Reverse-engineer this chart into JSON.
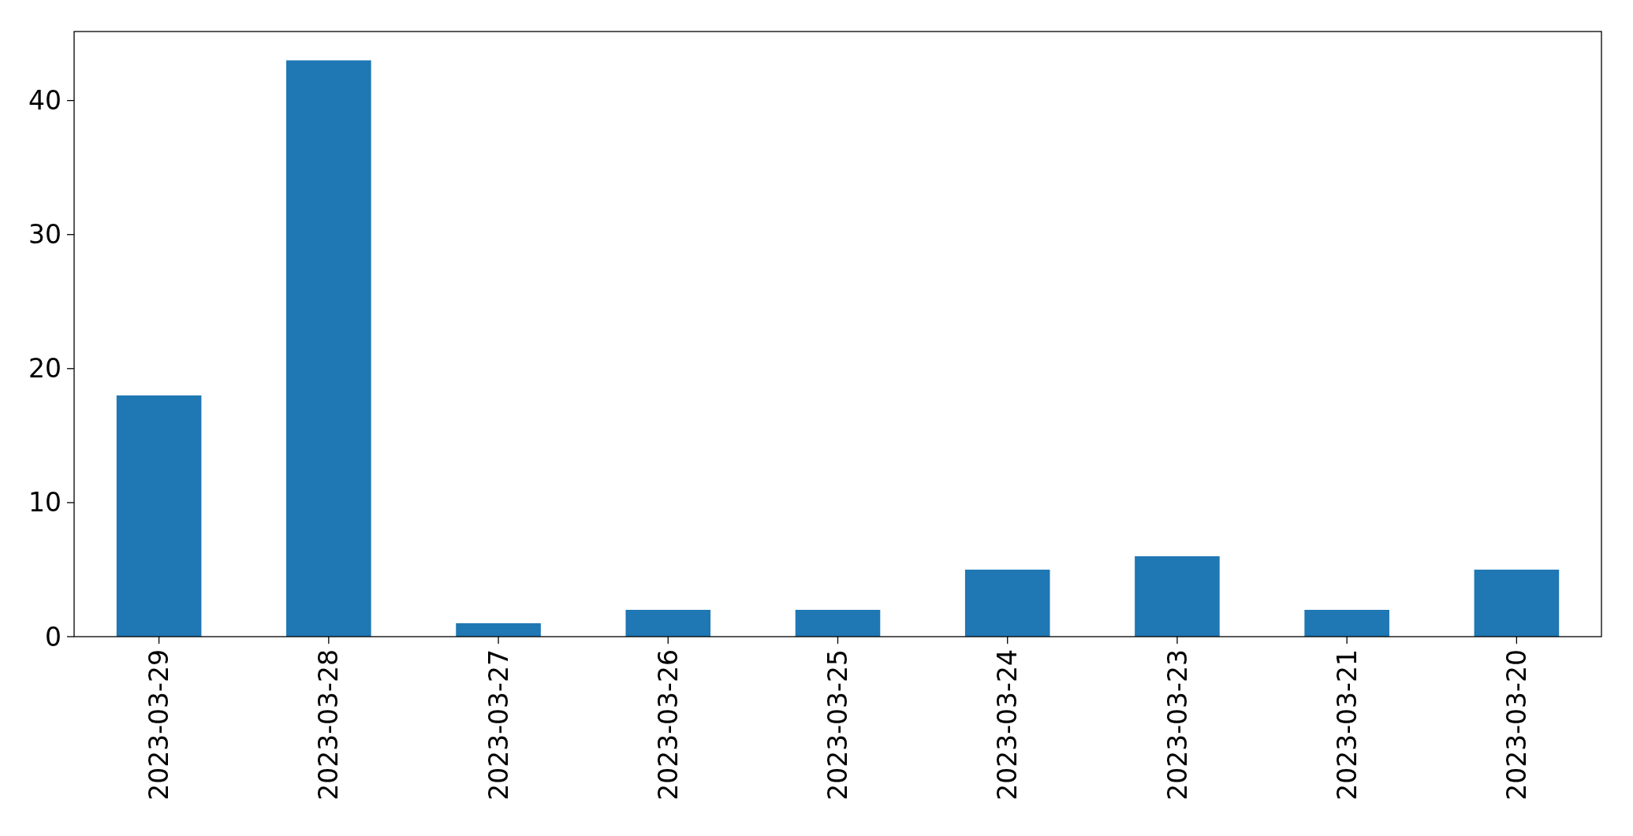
{
  "chart_data": {
    "type": "bar",
    "categories": [
      "2023-03-29",
      "2023-03-28",
      "2023-03-27",
      "2023-03-26",
      "2023-03-25",
      "2023-03-24",
      "2023-03-23",
      "2023-03-21",
      "2023-03-20"
    ],
    "values": [
      18,
      43,
      1,
      2,
      2,
      5,
      6,
      2,
      5
    ],
    "color": "#1f77b4",
    "ylim": [
      0,
      45.15
    ],
    "yticks": [
      0,
      10,
      20,
      30,
      40
    ]
  }
}
